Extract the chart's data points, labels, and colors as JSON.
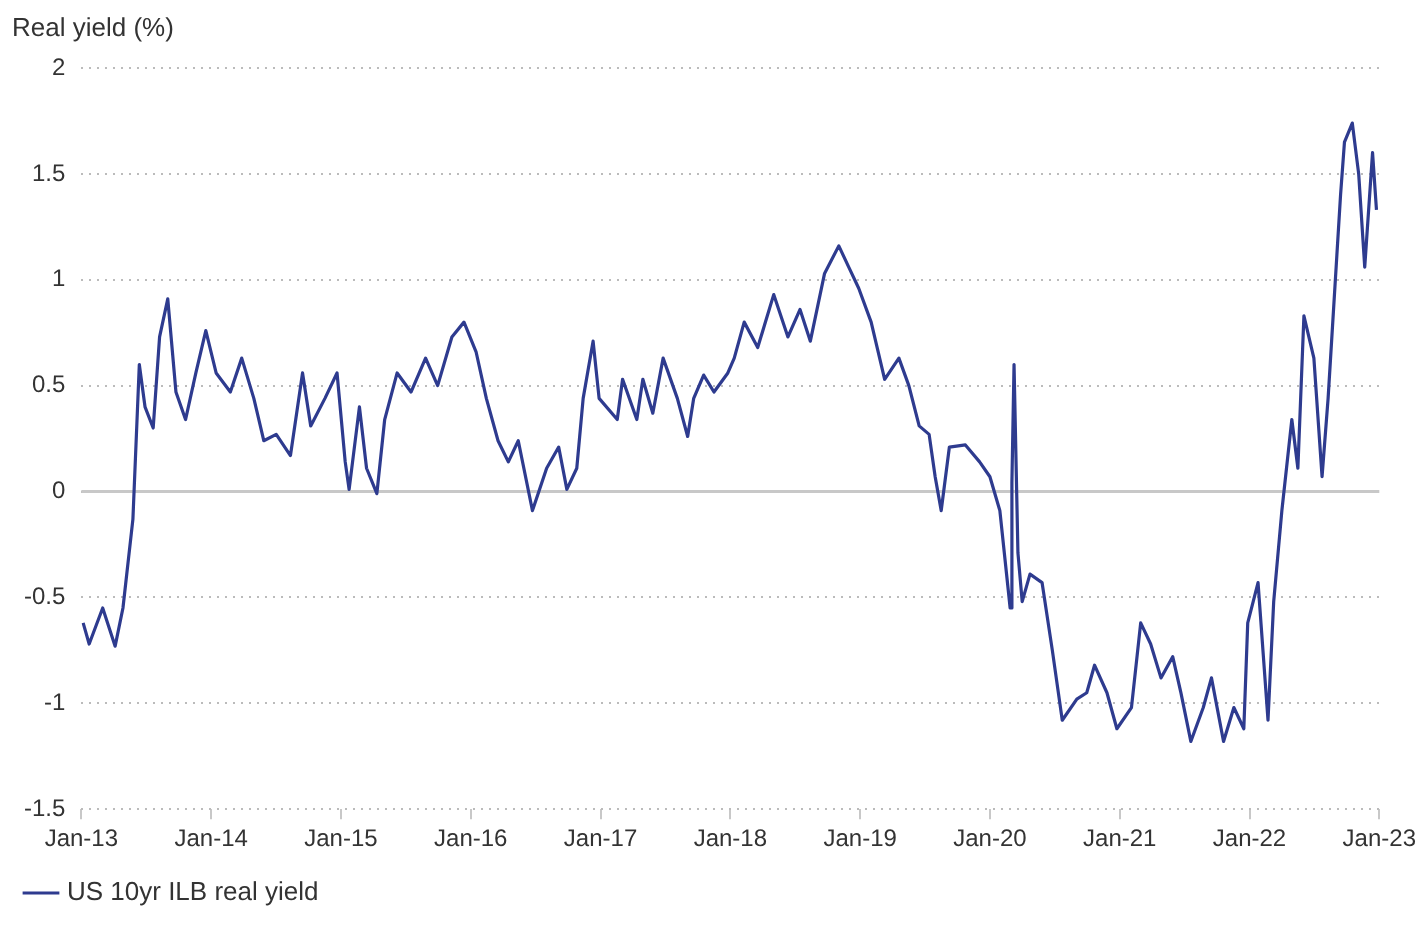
{
  "chart_data": {
    "type": "line",
    "ylabel": "Real yield (%)",
    "xlim": [
      "2013-01-01",
      "2023-01-01"
    ],
    "xticks": [
      {
        "value": "2013-01-01",
        "label": "Jan-13"
      },
      {
        "value": "2014-01-01",
        "label": "Jan-14"
      },
      {
        "value": "2015-01-01",
        "label": "Jan-15"
      },
      {
        "value": "2016-01-01",
        "label": "Jan-16"
      },
      {
        "value": "2017-01-01",
        "label": "Jan-17"
      },
      {
        "value": "2018-01-01",
        "label": "Jan-18"
      },
      {
        "value": "2019-01-01",
        "label": "Jan-19"
      },
      {
        "value": "2020-01-01",
        "label": "Jan-20"
      },
      {
        "value": "2021-01-01",
        "label": "Jan-21"
      },
      {
        "value": "2022-01-01",
        "label": "Jan-22"
      },
      {
        "value": "2023-01-01",
        "label": "Jan-23"
      }
    ],
    "ylim": [
      -1.5,
      2
    ],
    "yticks": [
      -1.5,
      -1,
      -0.5,
      0,
      0.5,
      1,
      1.5,
      2
    ],
    "grid": "y",
    "legend": "bottom",
    "marker": "none",
    "line_style": "solid",
    "ref_lines": [
      {
        "axis": "y",
        "value": 0,
        "color": "#c8c8c8"
      }
    ],
    "x": [
      "2013-01-06",
      "2013-01-23",
      "2013-03-02",
      "2013-04-06",
      "2013-04-28",
      "2013-05-26",
      "2013-06-13",
      "2013-06-29",
      "2013-07-22",
      "2013-08-09",
      "2013-09-01",
      "2013-09-24",
      "2013-10-21",
      "2013-11-19",
      "2013-12-17",
      "2014-01-15",
      "2014-02-24",
      "2014-03-28",
      "2014-05-01",
      "2014-05-29",
      "2014-07-03",
      "2014-08-12",
      "2014-09-15",
      "2014-10-08",
      "2014-11-17",
      "2014-12-21",
      "2015-01-13",
      "2015-01-24",
      "2015-02-22",
      "2015-03-14",
      "2015-04-12",
      "2015-05-04",
      "2015-06-08",
      "2015-07-17",
      "2015-08-27",
      "2015-09-30",
      "2015-11-09",
      "2015-12-13",
      "2016-01-16",
      "2016-02-14",
      "2016-03-18",
      "2016-04-16",
      "2016-05-14",
      "2016-06-23",
      "2016-08-02",
      "2016-09-05",
      "2016-09-28",
      "2016-10-26",
      "2016-11-13",
      "2016-12-11",
      "2016-12-28",
      "2017-02-17",
      "2017-03-04",
      "2017-04-13",
      "2017-04-30",
      "2017-05-28",
      "2017-06-26",
      "2017-08-05",
      "2017-09-03",
      "2017-09-20",
      "2017-10-18",
      "2017-11-16",
      "2017-12-25",
      "2018-01-12",
      "2018-02-09",
      "2018-03-19",
      "2018-05-03",
      "2018-06-12",
      "2018-07-16",
      "2018-08-14",
      "2018-09-23",
      "2018-11-02",
      "2018-11-30",
      "2018-12-28",
      "2019-02-01",
      "2019-03-11",
      "2019-04-20",
      "2019-05-18",
      "2019-06-16",
      "2019-07-14",
      "2019-07-31",
      "2019-08-17",
      "2019-09-09",
      "2019-10-24",
      "2019-12-03",
      "2020-01-01",
      "2020-01-29",
      "2020-02-27",
      "2020-03-03",
      "2020-03-09",
      "2020-03-20",
      "2020-04-01",
      "2020-04-23",
      "2020-05-27",
      "2020-06-25",
      "2020-07-23",
      "2020-09-02",
      "2020-09-30",
      "2020-10-22",
      "2020-11-26",
      "2020-12-24",
      "2021-02-03",
      "2021-03-01",
      "2021-03-29",
      "2021-04-27",
      "2021-05-30",
      "2021-06-22",
      "2021-07-20",
      "2021-08-24",
      "2021-09-16",
      "2021-10-20",
      "2021-11-18",
      "2021-12-16",
      "2021-12-27",
      "2022-01-25",
      "2022-02-22",
      "2022-03-10",
      "2022-04-02",
      "2022-04-30",
      "2022-05-17",
      "2022-06-03",
      "2022-07-01",
      "2022-07-24",
      "2022-08-10",
      "2022-09-14",
      "2022-09-25",
      "2022-10-17",
      "2022-11-04",
      "2022-11-21",
      "2022-12-13",
      "2022-12-24"
    ],
    "series": [
      {
        "name": "US 10yr ILB real yield",
        "color": "#2e3b8f",
        "values": [
          -0.62,
          -0.72,
          -0.55,
          -0.73,
          -0.55,
          -0.13,
          0.6,
          0.4,
          0.3,
          0.73,
          0.91,
          0.47,
          0.34,
          0.56,
          0.76,
          0.56,
          0.47,
          0.63,
          0.44,
          0.24,
          0.27,
          0.17,
          0.56,
          0.31,
          0.44,
          0.56,
          0.14,
          0.01,
          0.4,
          0.11,
          -0.01,
          0.34,
          0.56,
          0.47,
          0.63,
          0.5,
          0.73,
          0.8,
          0.66,
          0.44,
          0.24,
          0.14,
          0.24,
          -0.09,
          0.11,
          0.21,
          0.01,
          0.11,
          0.44,
          0.71,
          0.44,
          0.34,
          0.53,
          0.34,
          0.53,
          0.37,
          0.63,
          0.44,
          0.26,
          0.44,
          0.55,
          0.47,
          0.56,
          0.63,
          0.8,
          0.68,
          0.93,
          0.73,
          0.86,
          0.71,
          1.03,
          1.16,
          1.06,
          0.96,
          0.8,
          0.53,
          0.63,
          0.5,
          0.31,
          0.27,
          0.07,
          -0.09,
          0.21,
          0.22,
          0.14,
          0.07,
          -0.09,
          -0.55,
          0.04,
          0.6,
          -0.29,
          -0.52,
          -0.39,
          -0.43,
          -0.75,
          -1.08,
          -0.98,
          -0.95,
          -0.82,
          -0.95,
          -1.12,
          -1.02,
          -0.62,
          -0.72,
          -0.88,
          -0.78,
          -0.95,
          -1.18,
          -1.02,
          -0.88,
          -1.18,
          -1.02,
          -1.12,
          -0.62,
          -0.43,
          -1.08,
          -0.52,
          -0.09,
          0.34,
          0.11,
          0.83,
          0.63,
          0.07,
          0.44,
          1.4,
          1.65,
          1.74,
          1.5,
          1.06,
          1.6,
          1.33
        ]
      }
    ]
  }
}
